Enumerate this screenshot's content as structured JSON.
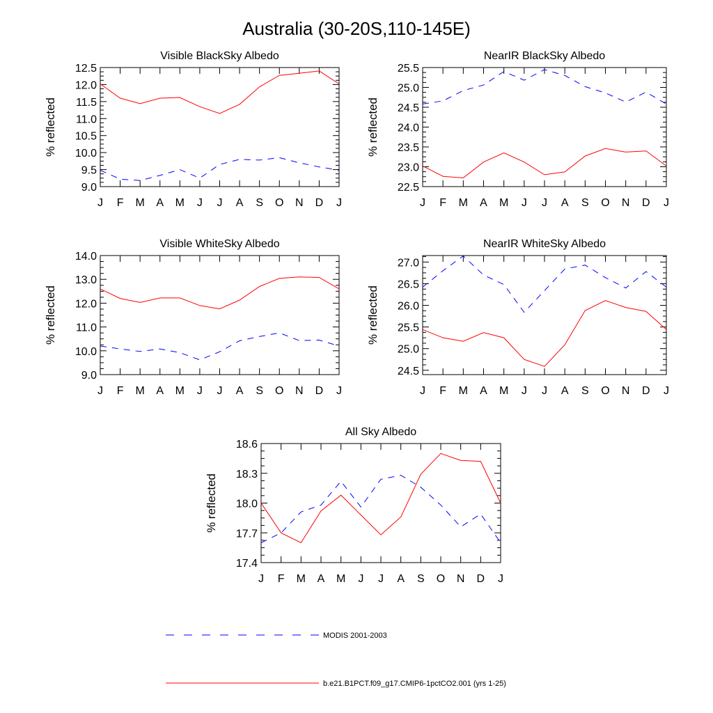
{
  "figure": {
    "title": "Australia (30-20S,110-145E)"
  },
  "legend": {
    "entries": [
      {
        "label": "MODIS 2001-2003",
        "color": "#0000ff",
        "dash": "dashed"
      },
      {
        "label": "b.e21.B1PCT.f09_g17.CMIP6-1pctCO2.001 (yrs 1-25)",
        "color": "#ff0000",
        "dash": "solid"
      }
    ]
  },
  "chart_data": [
    {
      "type": "line",
      "title": "Visible BlackSky Albedo",
      "xlabel": "",
      "ylabel": "% reflected",
      "categories": [
        "J",
        "F",
        "M",
        "A",
        "M",
        "J",
        "J",
        "A",
        "S",
        "O",
        "N",
        "D",
        "J"
      ],
      "ylim": [
        9.0,
        12.5
      ],
      "yticks": [
        "9.0",
        "9.5",
        "10.0",
        "10.5",
        "11.0",
        "11.5",
        "12.0",
        "12.5"
      ],
      "grid": false,
      "series": [
        {
          "name": "MODIS 2001-2003",
          "color": "#0000ff",
          "dash": "dashed",
          "values": [
            9.48,
            9.22,
            9.18,
            9.33,
            9.5,
            9.25,
            9.65,
            9.8,
            9.78,
            9.85,
            9.7,
            9.58,
            9.48
          ]
        },
        {
          "name": "b.e21.B1PCT.f09_g17.CMIP6-1pctCO2.001 (yrs 1-25)",
          "color": "#ff0000",
          "dash": "solid",
          "values": [
            12.02,
            11.6,
            11.44,
            11.6,
            11.62,
            11.35,
            11.15,
            11.42,
            11.93,
            12.27,
            12.33,
            12.4,
            12.02
          ]
        }
      ]
    },
    {
      "type": "line",
      "title": "NearIR BlackSky Albedo",
      "xlabel": "",
      "ylabel": "% reflected",
      "categories": [
        "J",
        "F",
        "M",
        "A",
        "M",
        "J",
        "J",
        "A",
        "S",
        "O",
        "N",
        "D",
        "J"
      ],
      "ylim": [
        22.5,
        25.5
      ],
      "yticks": [
        "22.5",
        "23.0",
        "23.5",
        "24.0",
        "24.5",
        "25.0",
        "25.5"
      ],
      "grid": false,
      "series": [
        {
          "name": "MODIS 2001-2003",
          "color": "#0000ff",
          "dash": "dashed",
          "values": [
            24.58,
            24.66,
            24.92,
            25.06,
            25.4,
            25.18,
            25.45,
            25.3,
            25.02,
            24.86,
            24.63,
            24.88,
            24.58
          ]
        },
        {
          "name": "b.e21.B1PCT.f09_g17.CMIP6-1pctCO2.001 (yrs 1-25)",
          "color": "#ff0000",
          "dash": "solid",
          "values": [
            23.02,
            22.76,
            22.72,
            23.12,
            23.35,
            23.12,
            22.8,
            22.87,
            23.27,
            23.46,
            23.37,
            23.4,
            23.02
          ]
        }
      ]
    },
    {
      "type": "line",
      "title": "Visible WhiteSky Albedo",
      "xlabel": "",
      "ylabel": "% reflected",
      "categories": [
        "J",
        "F",
        "M",
        "A",
        "M",
        "J",
        "J",
        "A",
        "S",
        "O",
        "N",
        "D",
        "J"
      ],
      "ylim": [
        9.0,
        14.0
      ],
      "yticks": [
        "9.0",
        "10.0",
        "11.0",
        "12.0",
        "13.0",
        "14.0"
      ],
      "grid": false,
      "series": [
        {
          "name": "MODIS 2001-2003",
          "color": "#0000ff",
          "dash": "dashed",
          "values": [
            10.2,
            10.08,
            9.97,
            10.08,
            9.92,
            9.62,
            9.96,
            10.42,
            10.6,
            10.75,
            10.43,
            10.45,
            10.2
          ]
        },
        {
          "name": "b.e21.B1PCT.f09_g17.CMIP6-1pctCO2.001 (yrs 1-25)",
          "color": "#ff0000",
          "dash": "solid",
          "values": [
            12.6,
            12.2,
            12.03,
            12.22,
            12.22,
            11.9,
            11.76,
            12.13,
            12.7,
            13.04,
            13.1,
            13.08,
            12.6
          ]
        }
      ]
    },
    {
      "type": "line",
      "title": "NearIR WhiteSky Albedo",
      "xlabel": "",
      "ylabel": "% reflected",
      "categories": [
        "J",
        "F",
        "M",
        "A",
        "M",
        "J",
        "J",
        "A",
        "S",
        "O",
        "N",
        "D",
        "J"
      ],
      "ylim": [
        24.4,
        27.15
      ],
      "yticks": [
        "24.5",
        "25.0",
        "25.5",
        "26.0",
        "26.5",
        "27.0"
      ],
      "grid": false,
      "series": [
        {
          "name": "MODIS 2001-2003",
          "color": "#0000ff",
          "dash": "dashed",
          "values": [
            26.42,
            26.8,
            27.14,
            26.7,
            26.48,
            25.84,
            26.34,
            26.84,
            26.93,
            26.64,
            26.4,
            26.78,
            26.42
          ]
        },
        {
          "name": "b.e21.B1PCT.f09_g17.CMIP6-1pctCO2.001 (yrs 1-25)",
          "color": "#ff0000",
          "dash": "solid",
          "values": [
            25.44,
            25.25,
            25.17,
            25.37,
            25.25,
            24.75,
            24.59,
            25.09,
            25.88,
            26.11,
            25.95,
            25.86,
            25.44
          ]
        }
      ]
    },
    {
      "type": "line",
      "title": "All Sky Albedo",
      "xlabel": "",
      "ylabel": "% reflected",
      "categories": [
        "J",
        "F",
        "M",
        "A",
        "M",
        "J",
        "J",
        "A",
        "S",
        "O",
        "N",
        "D",
        "J"
      ],
      "ylim": [
        17.4,
        18.6
      ],
      "yticks": [
        "17.4",
        "17.7",
        "18.0",
        "18.3",
        "18.6"
      ],
      "grid": false,
      "series": [
        {
          "name": "MODIS 2001-2003",
          "color": "#0000ff",
          "dash": "dashed",
          "values": [
            17.6,
            17.7,
            17.91,
            17.98,
            18.22,
            17.96,
            18.24,
            18.28,
            18.16,
            17.98,
            17.76,
            17.89,
            17.6
          ]
        },
        {
          "name": "b.e21.B1PCT.f09_g17.CMIP6-1pctCO2.001 (yrs 1-25)",
          "color": "#ff0000",
          "dash": "solid",
          "values": [
            18.0,
            17.7,
            17.6,
            17.92,
            18.08,
            17.88,
            17.68,
            17.86,
            18.29,
            18.5,
            18.43,
            18.42,
            18.0
          ]
        }
      ]
    }
  ]
}
